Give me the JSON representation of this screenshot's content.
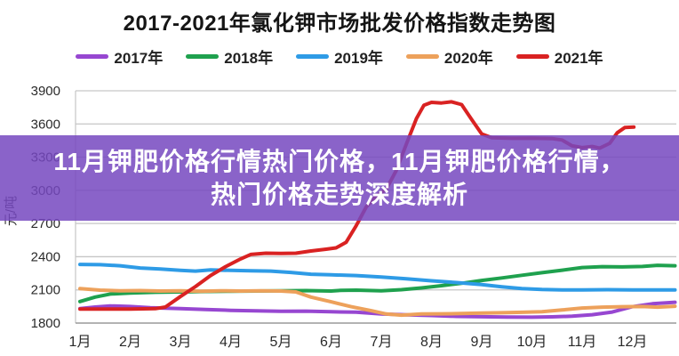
{
  "title": "2017-2021年氯化钾市场批发价格指数走势图",
  "overlay": {
    "line1": "11月钾肥价格行情热门价格，11月钾肥价格行情，",
    "line2": "热门价格走势深度解析",
    "background": "rgba(118,72,192,0.85)",
    "text_color": "#ffffff"
  },
  "colors": {
    "grid": "#c6c6c6",
    "axis": "#9a9a9a",
    "tick_text": "#2a2a2a"
  },
  "chart_data": {
    "type": "line",
    "title": "2017-2021年氯化钾市场批发价格指数走势图",
    "xlabel": "",
    "ylabel": "元/吨",
    "ylim": [
      1800,
      3900
    ],
    "y_ticks": [
      3900,
      3600,
      3300,
      3000,
      2700,
      2400,
      2100,
      1800
    ],
    "x_ticks": [
      "1月",
      "2月",
      "3月",
      "4月",
      "5月",
      "6月",
      "7月",
      "8月",
      "9月",
      "10月",
      "11月",
      "12月"
    ],
    "grid": true,
    "legend_position": "top",
    "series": [
      {
        "name": "2017年",
        "color": "#9747D1",
        "points": [
          [
            1,
            1930
          ],
          [
            1.3,
            1945
          ],
          [
            1.6,
            1955
          ],
          [
            2,
            1950
          ],
          [
            2.4,
            1938
          ],
          [
            3,
            1930
          ],
          [
            3.5,
            1922
          ],
          [
            4,
            1915
          ],
          [
            4.5,
            1910
          ],
          [
            5,
            1906
          ],
          [
            5.5,
            1908
          ],
          [
            6,
            1902
          ],
          [
            6.5,
            1898
          ],
          [
            7,
            1882
          ],
          [
            7.5,
            1875
          ],
          [
            8,
            1868
          ],
          [
            8.5,
            1860
          ],
          [
            9,
            1857
          ],
          [
            9.5,
            1854
          ],
          [
            10,
            1853
          ],
          [
            10.4,
            1856
          ],
          [
            10.8,
            1862
          ],
          [
            11.2,
            1876
          ],
          [
            11.6,
            1900
          ],
          [
            12,
            1948
          ],
          [
            12.4,
            1975
          ],
          [
            12.85,
            1988
          ]
        ]
      },
      {
        "name": "2018年",
        "color": "#1FA14E",
        "points": [
          [
            1,
            1995
          ],
          [
            1.3,
            2035
          ],
          [
            1.6,
            2062
          ],
          [
            2,
            2072
          ],
          [
            2.5,
            2078
          ],
          [
            3,
            2082
          ],
          [
            3.5,
            2086
          ],
          [
            4,
            2088
          ],
          [
            4.5,
            2090
          ],
          [
            5,
            2092
          ],
          [
            5.5,
            2094
          ],
          [
            6,
            2090
          ],
          [
            6.2,
            2096
          ],
          [
            6.5,
            2098
          ],
          [
            7,
            2092
          ],
          [
            7.4,
            2102
          ],
          [
            7.8,
            2118
          ],
          [
            8.2,
            2138
          ],
          [
            8.6,
            2160
          ],
          [
            9,
            2185
          ],
          [
            9.4,
            2208
          ],
          [
            9.8,
            2232
          ],
          [
            10.2,
            2255
          ],
          [
            10.6,
            2278
          ],
          [
            11,
            2302
          ],
          [
            11.4,
            2310
          ],
          [
            11.8,
            2308
          ],
          [
            12.2,
            2312
          ],
          [
            12.5,
            2322
          ],
          [
            12.85,
            2318
          ]
        ]
      },
      {
        "name": "2019年",
        "color": "#2E9BE6",
        "points": [
          [
            1,
            2330
          ],
          [
            1.4,
            2328
          ],
          [
            1.8,
            2318
          ],
          [
            2.2,
            2298
          ],
          [
            2.6,
            2288
          ],
          [
            3,
            2276
          ],
          [
            3.3,
            2270
          ],
          [
            3.6,
            2280
          ],
          [
            4,
            2276
          ],
          [
            4.4,
            2272
          ],
          [
            4.8,
            2270
          ],
          [
            5.2,
            2258
          ],
          [
            5.6,
            2242
          ],
          [
            6,
            2236
          ],
          [
            6.5,
            2230
          ],
          [
            7,
            2216
          ],
          [
            7.5,
            2200
          ],
          [
            8,
            2182
          ],
          [
            8.5,
            2166
          ],
          [
            9,
            2148
          ],
          [
            9.4,
            2128
          ],
          [
            9.8,
            2112
          ],
          [
            10.2,
            2103
          ],
          [
            10.6,
            2100
          ],
          [
            11,
            2100
          ],
          [
            11.5,
            2102
          ],
          [
            12,
            2100
          ],
          [
            12.85,
            2100
          ]
        ]
      },
      {
        "name": "2020年",
        "color": "#EDA15B",
        "points": [
          [
            1,
            2112
          ],
          [
            1.4,
            2098
          ],
          [
            1.8,
            2092
          ],
          [
            2.2,
            2094
          ],
          [
            2.6,
            2090
          ],
          [
            3,
            2092
          ],
          [
            3.4,
            2088
          ],
          [
            3.8,
            2092
          ],
          [
            4.2,
            2090
          ],
          [
            4.6,
            2092
          ],
          [
            5,
            2090
          ],
          [
            5.3,
            2082
          ],
          [
            5.6,
            2035
          ],
          [
            6,
            1992
          ],
          [
            6.4,
            1948
          ],
          [
            6.8,
            1912
          ],
          [
            7.1,
            1882
          ],
          [
            7.4,
            1872
          ],
          [
            7.8,
            1882
          ],
          [
            8.2,
            1884
          ],
          [
            8.6,
            1886
          ],
          [
            9,
            1890
          ],
          [
            9.4,
            1893
          ],
          [
            9.8,
            1897
          ],
          [
            10.2,
            1902
          ],
          [
            10.6,
            1918
          ],
          [
            11,
            1936
          ],
          [
            11.4,
            1944
          ],
          [
            11.8,
            1948
          ],
          [
            12.2,
            1950
          ],
          [
            12.5,
            1944
          ],
          [
            12.85,
            1952
          ]
        ]
      },
      {
        "name": "2021年",
        "color": "#D92222",
        "points": [
          [
            1,
            1926
          ],
          [
            1.5,
            1926
          ],
          [
            2,
            1926
          ],
          [
            2.5,
            1930
          ],
          [
            2.7,
            1945
          ],
          [
            3,
            2040
          ],
          [
            3.3,
            2130
          ],
          [
            3.6,
            2230
          ],
          [
            3.9,
            2310
          ],
          [
            4.2,
            2380
          ],
          [
            4.4,
            2420
          ],
          [
            4.7,
            2432
          ],
          [
            5,
            2430
          ],
          [
            5.3,
            2432
          ],
          [
            5.6,
            2452
          ],
          [
            5.9,
            2468
          ],
          [
            6.1,
            2480
          ],
          [
            6.3,
            2530
          ],
          [
            6.5,
            2680
          ],
          [
            6.7,
            2850
          ],
          [
            6.9,
            2950
          ],
          [
            7.1,
            3010
          ],
          [
            7.3,
            3180
          ],
          [
            7.5,
            3420
          ],
          [
            7.7,
            3650
          ],
          [
            7.85,
            3770
          ],
          [
            8,
            3795
          ],
          [
            8.2,
            3790
          ],
          [
            8.4,
            3800
          ],
          [
            8.6,
            3775
          ],
          [
            8.8,
            3640
          ],
          [
            9,
            3510
          ],
          [
            9.2,
            3475
          ],
          [
            9.6,
            3470
          ],
          [
            10,
            3472
          ],
          [
            10.4,
            3468
          ],
          [
            10.6,
            3455
          ],
          [
            10.8,
            3402
          ],
          [
            11,
            3386
          ],
          [
            11.2,
            3396
          ],
          [
            11.35,
            3382
          ],
          [
            11.55,
            3425
          ],
          [
            11.7,
            3520
          ],
          [
            11.85,
            3568
          ],
          [
            12.03,
            3572
          ]
        ]
      }
    ]
  }
}
